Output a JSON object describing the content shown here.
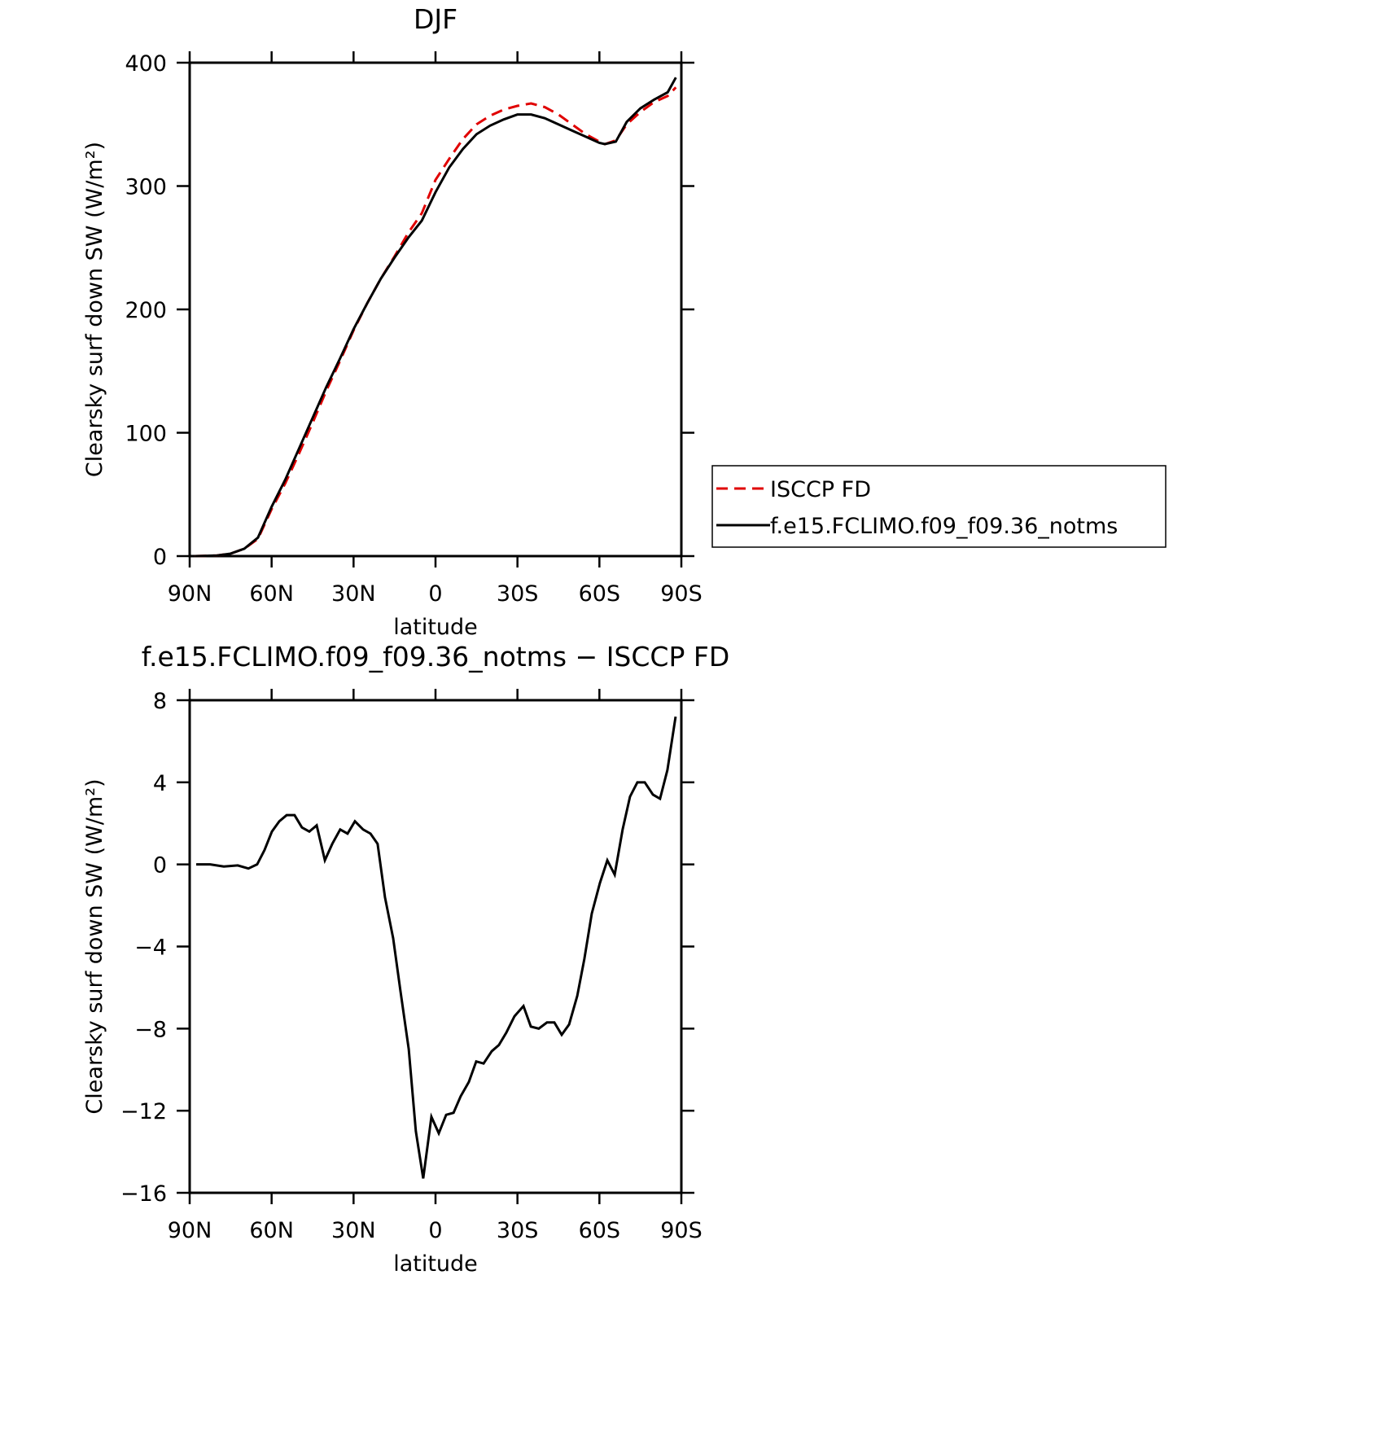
{
  "chart_data": [
    {
      "type": "line",
      "title": "DJF",
      "xlabel": "latitude",
      "ylabel": "Clearsky surf down SW (W/m²)",
      "x": [
        88,
        80,
        75,
        70,
        65,
        60,
        55,
        50,
        45,
        40,
        35,
        30,
        25,
        20,
        15,
        10,
        5,
        0,
        -5,
        -10,
        -15,
        -20,
        -25,
        -30,
        -35,
        -40,
        -45,
        -50,
        -55,
        -60,
        -62,
        -66,
        -70,
        -75,
        -80,
        -85,
        -88
      ],
      "series": [
        {
          "name": "ISCCP FD",
          "color": "#e00000",
          "dash": true,
          "values": [
            0,
            0.5,
            2,
            6,
            14,
            38,
            59,
            83,
            108,
            134,
            158,
            183,
            205,
            225,
            243,
            262,
            278,
            305,
            322,
            338,
            350,
            357,
            362,
            365,
            367,
            364,
            358,
            350,
            342,
            336,
            334,
            337,
            350,
            360,
            368,
            373,
            380
          ]
        },
        {
          "name": "f.e15.FCLIMO.f09_f09.36_notms",
          "color": "#000000",
          "dash": false,
          "values": [
            0,
            0.5,
            2,
            6,
            15,
            40,
            62,
            87,
            112,
            137,
            160,
            184,
            205,
            225,
            242,
            258,
            272,
            295,
            315,
            330,
            342,
            349,
            354,
            358,
            358,
            355,
            350,
            345,
            340,
            335,
            334,
            336,
            352,
            363,
            370,
            376,
            388
          ]
        }
      ],
      "xlim": [
        90,
        -90
      ],
      "xticks": [
        {
          "value": 90,
          "label": "90N"
        },
        {
          "value": 60,
          "label": "60N"
        },
        {
          "value": 30,
          "label": "30N"
        },
        0,
        {
          "value": -30,
          "label": "30S"
        },
        {
          "value": -60,
          "label": "60S"
        },
        {
          "value": -90,
          "label": "90S"
        }
      ],
      "ylim": [
        0,
        400
      ],
      "yticks": [
        0,
        100,
        200,
        300,
        400
      ],
      "legend": "right"
    },
    {
      "type": "line",
      "title": "f.e15.FCLIMO.f09_f09.36_notms − ISCCP FD",
      "xlabel": "latitude",
      "ylabel": "Clearsky surf down SW (W/m²)",
      "x": [
        87.6,
        82.5,
        77.5,
        72.4,
        68.5,
        65.3,
        62.6,
        59.9,
        57.2,
        54.5,
        51.6,
        48.9,
        46.2,
        43.5,
        40.5,
        37.8,
        34.9,
        32.2,
        29.5,
        26.5,
        23.8,
        21.2,
        18.5,
        15.5,
        12.8,
        9.8,
        7.2,
        4.5,
        1.5,
        -1.2,
        -3.9,
        -6.6,
        -9.2,
        -12.2,
        -14.9,
        -17.6,
        -20.6,
        -23.2,
        -25.9,
        -28.9,
        -32.2,
        -34.9,
        -37.8,
        -40.8,
        -43.5,
        -46.2,
        -48.9,
        -51.9,
        -54.5,
        -57.2,
        -60.2,
        -62.9,
        -65.6,
        -68.5,
        -71.2,
        -73.9,
        -76.6,
        -79.6,
        -82.2,
        -84.9,
        -87.9
      ],
      "series": [
        {
          "name": "f.e15.FCLIMO.f09_f09.36_notms − ISCCP FD",
          "color": "#000000",
          "dash": false,
          "values": [
            0,
            0,
            -0.1,
            -0.05,
            -0.2,
            0,
            0.7,
            1.6,
            2.1,
            2.4,
            2.4,
            1.8,
            1.6,
            1.9,
            0.2,
            1,
            1.7,
            1.5,
            2.1,
            1.7,
            1.5,
            1,
            -1.6,
            -3.6,
            -6.2,
            -9,
            -13,
            -15.3,
            -12.3,
            -13.1,
            -12.2,
            -12.1,
            -11.3,
            -10.6,
            -9.6,
            -9.7,
            -9.1,
            -8.8,
            -8.2,
            -7.4,
            -6.9,
            -7.9,
            -8,
            -7.7,
            -7.7,
            -8.3,
            -7.8,
            -6.4,
            -4.6,
            -2.4,
            -0.9,
            0.2,
            -0.5,
            1.7,
            3.3,
            4,
            4,
            3.4,
            3.2,
            4.6,
            7.2
          ]
        }
      ],
      "xlim": [
        90,
        -90
      ],
      "xticks": [
        {
          "value": 90,
          "label": "90N"
        },
        {
          "value": 60,
          "label": "60N"
        },
        {
          "value": 30,
          "label": "30N"
        },
        0,
        {
          "value": -30,
          "label": "30S"
        },
        {
          "value": -60,
          "label": "60S"
        },
        {
          "value": -90,
          "label": "90S"
        }
      ],
      "ylim": [
        -16,
        8
      ],
      "yticks": [
        {
          "value": -16,
          "label": "−16"
        },
        {
          "value": -12,
          "label": "−12"
        },
        {
          "value": -8,
          "label": "−8"
        },
        {
          "value": -4,
          "label": "−4"
        },
        0,
        4,
        8
      ]
    }
  ]
}
